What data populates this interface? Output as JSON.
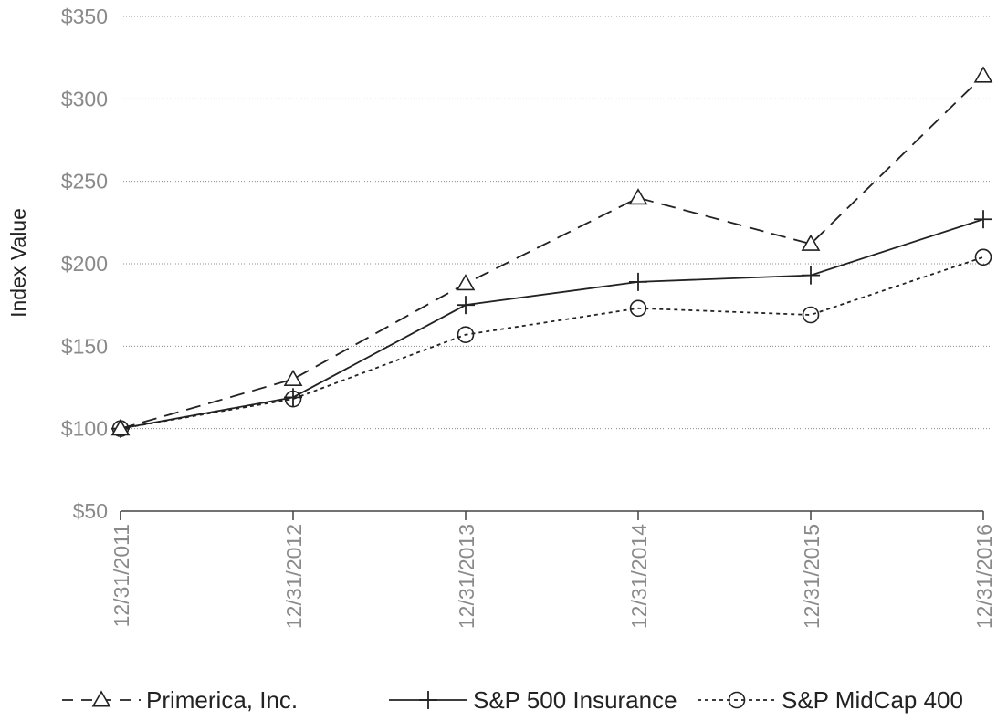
{
  "chart_data": {
    "type": "line",
    "title": "",
    "xlabel": "",
    "ylabel": "Index Value",
    "categories": [
      "12/31/2011",
      "12/31/2012",
      "12/31/2013",
      "12/31/2014",
      "12/31/2015",
      "12/31/2016"
    ],
    "ylim": [
      50,
      350
    ],
    "yticks": [
      50,
      100,
      150,
      200,
      250,
      300,
      350
    ],
    "ytick_labels": [
      "$50",
      "$100",
      "$150",
      "$200",
      "$250",
      "$300",
      "$350"
    ],
    "grid": "horizontal dotted",
    "legend_position": "bottom",
    "series": [
      {
        "name": "Primerica, Inc.",
        "marker": "triangle",
        "line_style": "dashed",
        "color": "#222222",
        "values": [
          100,
          130,
          188,
          240,
          212,
          314
        ]
      },
      {
        "name": "S&P 500 Insurance",
        "marker": "plus",
        "line_style": "solid",
        "color": "#222222",
        "values": [
          100,
          119,
          175,
          189,
          193,
          227
        ]
      },
      {
        "name": "S&P MidCap 400",
        "marker": "circle",
        "line_style": "dotted",
        "color": "#222222",
        "values": [
          100,
          118,
          157,
          173,
          169,
          204
        ]
      }
    ]
  }
}
